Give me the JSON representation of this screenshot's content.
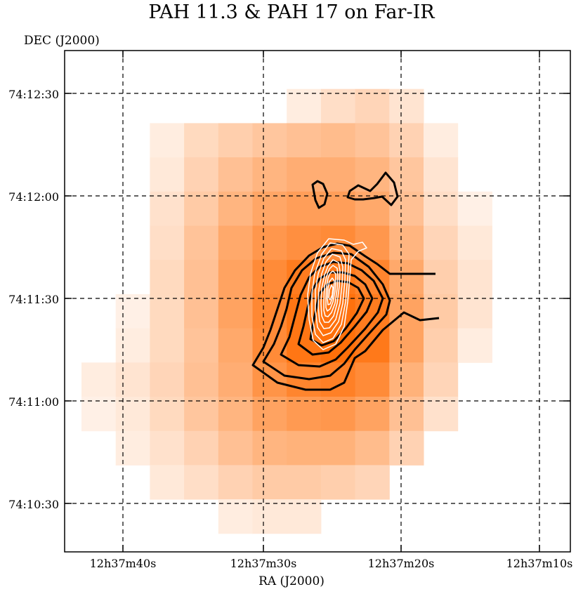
{
  "chart_data": {
    "type": "heatmap",
    "title": "PAH 11.3 & PAH 17 on Far-IR",
    "xlabel": "RA (J2000)",
    "ylabel": "DEC (J2000)",
    "x_ticks": [
      "12h37m40s",
      "12h37m30s",
      "12h37m20s",
      "12h37m10s"
    ],
    "y_ticks": [
      "74:12:30",
      "74:12:00",
      "74:11:30",
      "74:11:00",
      "74:10:30"
    ],
    "grid": true,
    "colormap": [
      "#ffffff",
      "#ff6a00"
    ],
    "heatmap_grid": [
      [
        0,
        0,
        0,
        0,
        0,
        0,
        0,
        0,
        0,
        0,
        0,
        0,
        0
      ],
      [
        0,
        0,
        0,
        0,
        0,
        0,
        0.12,
        0.22,
        0.28,
        0.18,
        0,
        0,
        0
      ],
      [
        0,
        0,
        0.12,
        0.25,
        0.32,
        0.38,
        0.42,
        0.45,
        0.4,
        0.3,
        0.12,
        0,
        0
      ],
      [
        0,
        0,
        0.15,
        0.3,
        0.42,
        0.5,
        0.55,
        0.55,
        0.5,
        0.38,
        0.18,
        0,
        0
      ],
      [
        0,
        0,
        0.2,
        0.35,
        0.5,
        0.6,
        0.65,
        0.65,
        0.58,
        0.42,
        0.22,
        0.1,
        0
      ],
      [
        0,
        0,
        0.22,
        0.4,
        0.58,
        0.7,
        0.75,
        0.78,
        0.7,
        0.5,
        0.28,
        0.15,
        0
      ],
      [
        0,
        0,
        0.25,
        0.42,
        0.62,
        0.78,
        0.88,
        0.9,
        0.82,
        0.58,
        0.32,
        0.18,
        0
      ],
      [
        0,
        0.1,
        0.25,
        0.42,
        0.62,
        0.8,
        0.92,
        0.95,
        0.88,
        0.62,
        0.35,
        0.18,
        0
      ],
      [
        0,
        0.12,
        0.25,
        0.4,
        0.58,
        0.78,
        0.92,
        0.96,
        0.9,
        0.62,
        0.32,
        0.12,
        0
      ],
      [
        0.12,
        0.18,
        0.28,
        0.42,
        0.55,
        0.72,
        0.82,
        0.85,
        0.78,
        0.52,
        0.28,
        0,
        0
      ],
      [
        0.1,
        0.15,
        0.25,
        0.38,
        0.5,
        0.62,
        0.68,
        0.7,
        0.62,
        0.42,
        0.2,
        0,
        0
      ],
      [
        0,
        0.12,
        0.2,
        0.3,
        0.42,
        0.5,
        0.52,
        0.52,
        0.45,
        0.3,
        0,
        0,
        0
      ],
      [
        0,
        0,
        0.15,
        0.22,
        0.3,
        0.35,
        0.35,
        0.32,
        0.28,
        0,
        0,
        0,
        0
      ],
      [
        0,
        0,
        0,
        0,
        0.12,
        0.15,
        0.15,
        0,
        0,
        0,
        0,
        0,
        0
      ],
      [
        0,
        0,
        0,
        0,
        0,
        0,
        0,
        0,
        0,
        0,
        0,
        0,
        0
      ]
    ],
    "contours_pah11_3": {
      "color": "#000000",
      "levels": 6
    },
    "contours_pah17": {
      "color": "#ffffff",
      "levels": 10
    }
  }
}
